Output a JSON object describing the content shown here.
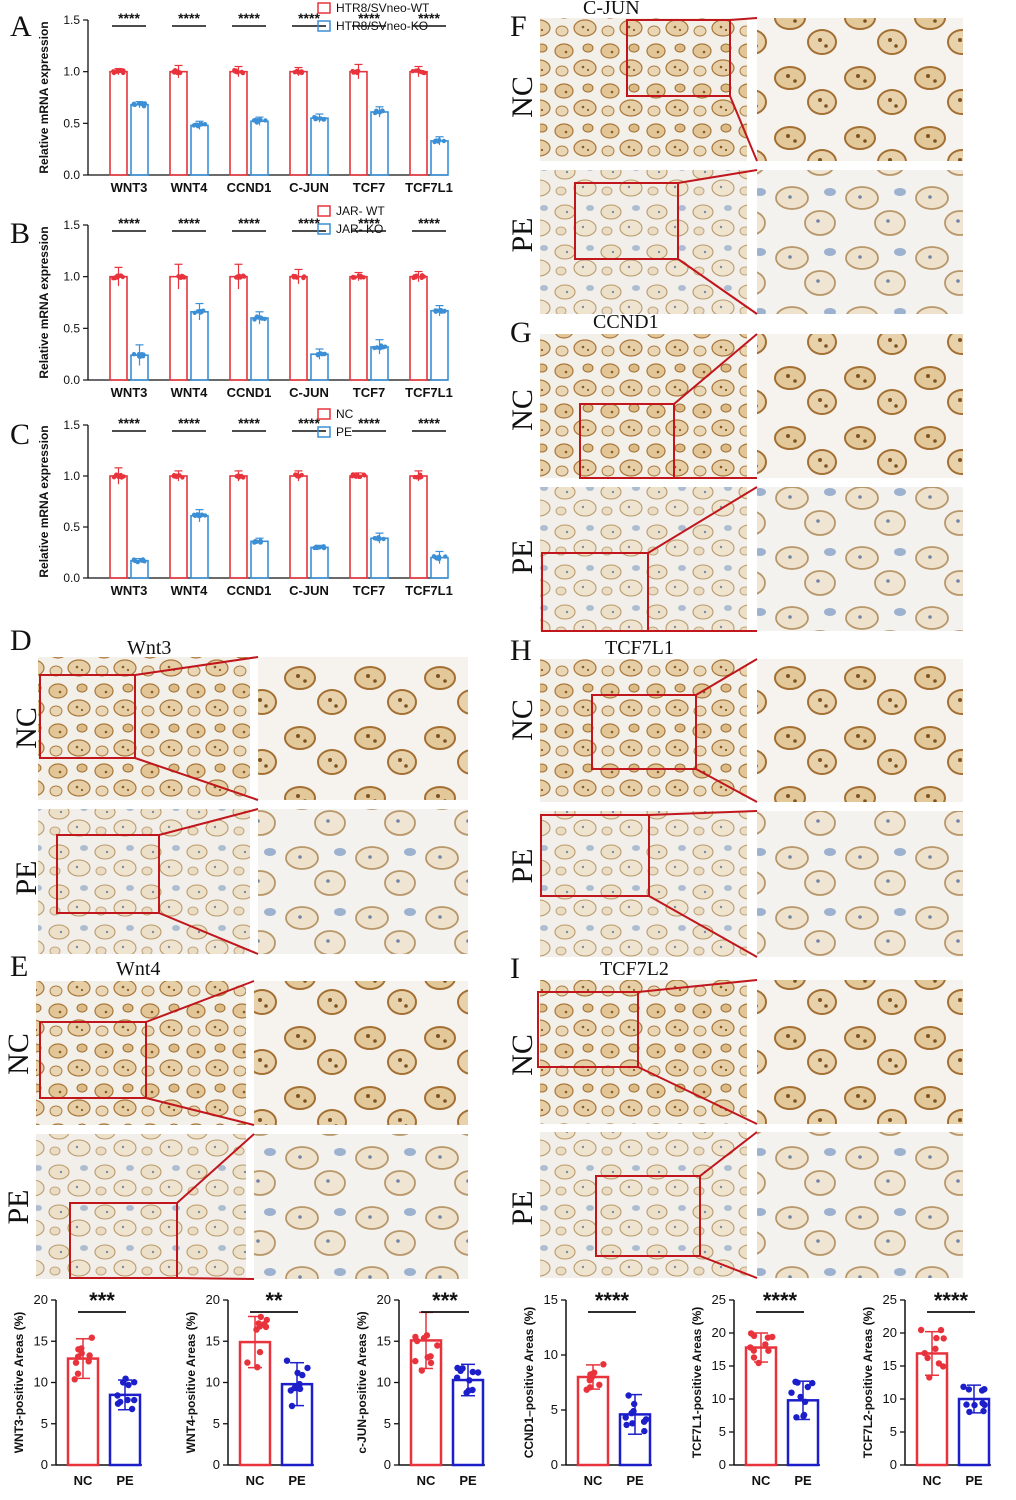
{
  "colors": {
    "red": "#e8333c",
    "blue": "#3a8fd6",
    "dark_blue": "#1c1fc9",
    "zoom_box": "#c0161c"
  },
  "panel_letters": {
    "A": "A",
    "B": "B",
    "C": "C",
    "D": "D",
    "E": "E",
    "F": "F",
    "G": "G",
    "H": "H",
    "I": "I"
  },
  "row_labels": {
    "nc": "NC",
    "pe": "PE"
  },
  "image_titles": {
    "D": "Wnt3",
    "E": "Wnt4",
    "F": "C-JUN",
    "G": "CCND1",
    "H": "TCF7L1",
    "I": "TCF7L2"
  },
  "chart_data": [
    {
      "panel": "A",
      "type": "bar",
      "ylabel": "Relative  mRNA expression",
      "ylim": [
        0,
        1.5
      ],
      "yticks": [
        "0.0",
        "0.5",
        "1.0",
        "1.5"
      ],
      "categories": [
        "WNT3",
        "WNT4",
        "CCND1",
        "C-JUN",
        "TCF7",
        "TCF7L1"
      ],
      "significance": [
        "****",
        "****",
        "****",
        "****",
        "****",
        "****"
      ],
      "series": [
        {
          "name": "HTR8/SVneo-WT",
          "values": [
            1.0,
            1.0,
            1.0,
            1.0,
            1.0,
            1.0
          ],
          "err": [
            0.03,
            0.06,
            0.05,
            0.04,
            0.07,
            0.05
          ]
        },
        {
          "name": "HTR8/SVneo-KO",
          "values": [
            0.68,
            0.48,
            0.52,
            0.55,
            0.61,
            0.33
          ],
          "err": [
            0.03,
            0.04,
            0.04,
            0.04,
            0.05,
            0.04
          ]
        }
      ]
    },
    {
      "panel": "B",
      "type": "bar",
      "ylabel": "Relative  mRNA expression",
      "ylim": [
        0,
        1.5
      ],
      "yticks": [
        "0.0",
        "0.5",
        "1.0",
        "1.5"
      ],
      "categories": [
        "WNT3",
        "WNT4",
        "CCND1",
        "C-JUN",
        "TCF7",
        "TCF7L1"
      ],
      "significance": [
        "****",
        "****",
        "****",
        "****",
        "****",
        "****"
      ],
      "series": [
        {
          "name": "JAR- WT",
          "values": [
            1.0,
            1.0,
            1.0,
            1.0,
            1.0,
            1.0
          ],
          "err": [
            0.09,
            0.12,
            0.12,
            0.07,
            0.04,
            0.05
          ]
        },
        {
          "name": "JAR- KO",
          "values": [
            0.24,
            0.66,
            0.6,
            0.25,
            0.32,
            0.67
          ],
          "err": [
            0.1,
            0.08,
            0.06,
            0.05,
            0.07,
            0.05
          ]
        }
      ]
    },
    {
      "panel": "C",
      "type": "bar",
      "ylabel": "Relative  mRNA expression",
      "ylim": [
        0,
        1.5
      ],
      "yticks": [
        "0.0",
        "0.5",
        "1.0",
        "1.5"
      ],
      "categories": [
        "WNT3",
        "WNT4",
        "CCND1",
        "C-JUN",
        "TCF7",
        "TCF7L1"
      ],
      "significance": [
        "****",
        "****",
        "****",
        "****",
        "****",
        "****"
      ],
      "series": [
        {
          "name": "NC",
          "values": [
            1.0,
            1.0,
            1.0,
            1.0,
            1.0,
            1.0
          ],
          "err": [
            0.08,
            0.05,
            0.05,
            0.05,
            0.03,
            0.05
          ]
        },
        {
          "name": "PE",
          "values": [
            0.17,
            0.61,
            0.36,
            0.3,
            0.39,
            0.2
          ],
          "err": [
            0.02,
            0.06,
            0.03,
            0.02,
            0.05,
            0.06
          ]
        }
      ]
    },
    {
      "panel": "bottom-1",
      "type": "bar",
      "ylabel": "WNT3-positive Areas  (%)",
      "ylim": [
        0,
        20
      ],
      "yticks": [
        "0",
        "5",
        "10",
        "15",
        "20"
      ],
      "categories": [
        "NC",
        "PE"
      ],
      "values": [
        12.9,
        8.5
      ],
      "err": [
        2.4,
        1.8
      ],
      "significance": "***"
    },
    {
      "panel": "bottom-2",
      "type": "bar",
      "ylabel": "WNT4-positive Areas  (%)",
      "ylim": [
        0,
        20
      ],
      "yticks": [
        "0",
        "5",
        "10",
        "15",
        "20"
      ],
      "categories": [
        "NC",
        "PE"
      ],
      "values": [
        14.9,
        9.8
      ],
      "err": [
        3.1,
        2.6
      ],
      "significance": "**"
    },
    {
      "panel": "bottom-3",
      "type": "bar",
      "ylabel": "c-JUN-positive Areas  (%)",
      "ylim": [
        0,
        20
      ],
      "yticks": [
        "0",
        "5",
        "10",
        "15",
        "20"
      ],
      "categories": [
        "NC",
        "PE"
      ],
      "values": [
        15.1,
        10.3
      ],
      "err": [
        3.4,
        1.9
      ],
      "significance": "***"
    },
    {
      "panel": "bottom-4",
      "type": "bar",
      "ylabel": "CCND1–positive Areas  (%)",
      "ylim": [
        0,
        15
      ],
      "yticks": [
        "0",
        "5",
        "10",
        "15"
      ],
      "categories": [
        "NC",
        "PE"
      ],
      "values": [
        8.0,
        4.6
      ],
      "err": [
        1.1,
        1.8
      ],
      "significance": "****"
    },
    {
      "panel": "bottom-5",
      "type": "bar",
      "ylabel": "TCF7L1-positive Areas  (%)",
      "ylim": [
        0,
        25
      ],
      "yticks": [
        "0",
        "5",
        "10",
        "15",
        "20",
        "25"
      ],
      "categories": [
        "NC",
        "PE"
      ],
      "values": [
        17.8,
        9.8
      ],
      "err": [
        2.2,
        2.9
      ],
      "significance": "****"
    },
    {
      "panel": "bottom-6",
      "type": "bar",
      "ylabel": "TCF7L2-positive Areas  (%)",
      "ylim": [
        0,
        25
      ],
      "yticks": [
        "0",
        "5",
        "10",
        "15",
        "20",
        "25"
      ],
      "categories": [
        "NC",
        "PE"
      ],
      "values": [
        16.9,
        10.0
      ],
      "err": [
        3.3,
        2.1
      ],
      "significance": "****"
    }
  ]
}
